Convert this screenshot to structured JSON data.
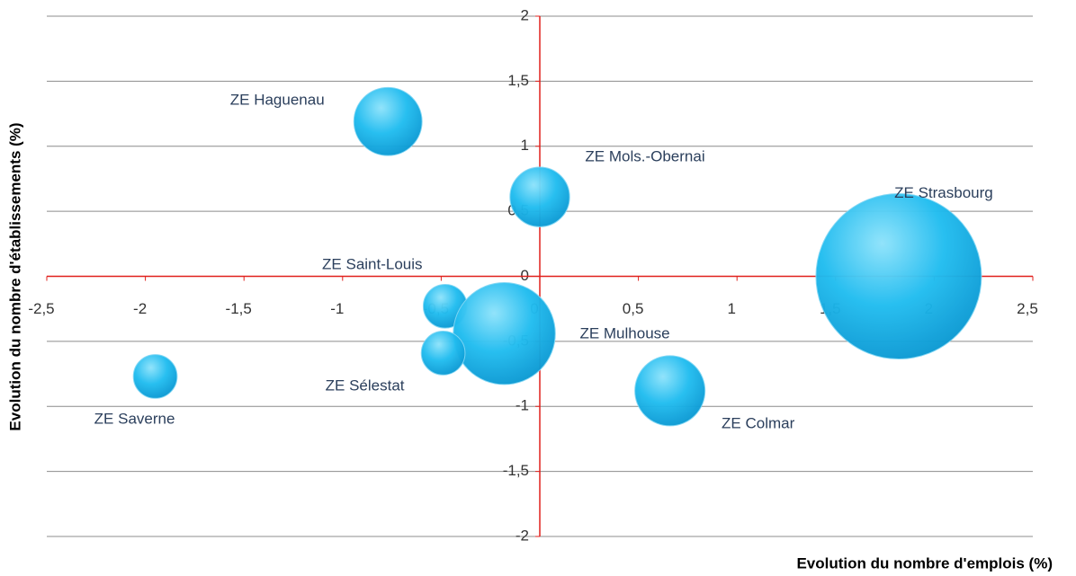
{
  "chart_data": {
    "type": "bubble",
    "x_label": "Evolution du nombre d'emplois (%)",
    "y_label": "Evolution du nombre d'établissements (%)",
    "labels": [
      "ZE Haguenau",
      "ZE Mols.-Obernai",
      "ZE Strasbourg",
      "ZE Saint-Louis",
      "ZE Mulhouse",
      "ZE Sélestat",
      "ZE Saverne",
      "ZE Colmar"
    ],
    "x": [
      -0.77,
      0,
      1.82,
      -0.48,
      -0.18,
      -0.49,
      -1.95,
      0.66
    ],
    "values": [
      1.19,
      0.61,
      0,
      -0.23,
      -0.44,
      -0.59,
      -0.77,
      -0.88
    ],
    "sizes": [
      17,
      13,
      100,
      7,
      38,
      7,
      7,
      18
    ],
    "color": "#1ab4e8",
    "axis_color": "#e0201c",
    "xlim": [
      -2.5,
      2.5
    ],
    "ylim": [
      -2,
      2
    ],
    "xticks": [
      {
        "value": -2.5,
        "label": "-2,5"
      },
      -2,
      {
        "value": -1.5,
        "label": "-1,5"
      },
      -1,
      {
        "value": -0.5,
        "label": "-0,5"
      },
      0,
      {
        "value": 0.5,
        "label": "0,5"
      },
      1,
      {
        "value": 1.5,
        "label": "1,5"
      },
      2,
      {
        "value": 2.5,
        "label": "2,5"
      }
    ],
    "yticks": [
      -2,
      {
        "value": -1.5,
        "label": "-1,5"
      },
      -1,
      {
        "value": -0.5,
        "label": "-0,5"
      },
      0,
      {
        "value": 0.5,
        "label": "0,5"
      },
      1,
      {
        "value": 1.5,
        "label": "1,5"
      },
      2
    ],
    "grid": true
  }
}
